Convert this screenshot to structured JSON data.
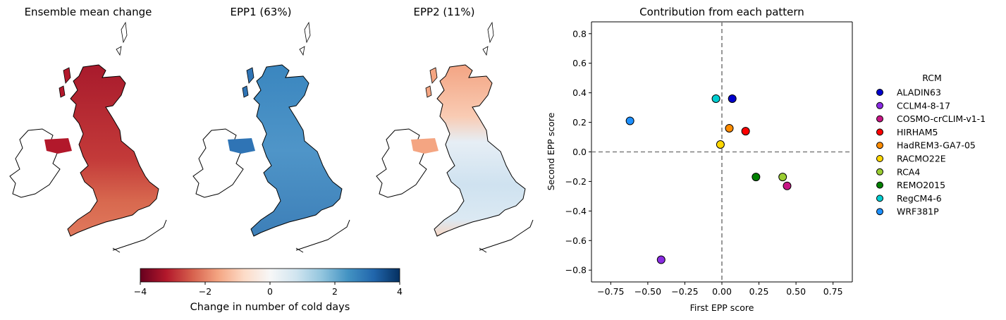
{
  "maps": [
    {
      "title": "Ensemble mean change"
    },
    {
      "title": "EPP1 (63%)"
    },
    {
      "title": "EPP2 (11%)"
    }
  ],
  "colorbar": {
    "label": "Change in number of cold days",
    "ticks": [
      "−4",
      "−2",
      "0",
      "2",
      "4"
    ],
    "min": -4,
    "max": 4,
    "colormap": "RdBu",
    "stops": [
      "#67001f",
      "#b2182b",
      "#d6604d",
      "#f4a582",
      "#fddbc7",
      "#f7f7f7",
      "#d1e5f0",
      "#92c5de",
      "#4393c3",
      "#2166ac",
      "#053061"
    ]
  },
  "chart_data": {
    "type": "scatter",
    "title": "Contribution from each pattern",
    "xlabel": "First EPP score",
    "ylabel": "Second EPP score",
    "xlim": [
      -0.88,
      0.88
    ],
    "ylim": [
      -0.88,
      0.88
    ],
    "xticks": [
      -0.75,
      -0.5,
      -0.25,
      0.0,
      0.25,
      0.5,
      0.75
    ],
    "xtick_labels": [
      "−0.75",
      "−0.50",
      "−0.25",
      "0.00",
      "0.25",
      "0.50",
      "0.75"
    ],
    "yticks": [
      0.8,
      0.6,
      0.4,
      0.2,
      0.0,
      -0.2,
      -0.4,
      -0.6,
      -0.8
    ],
    "ytick_labels": [
      "0.8",
      "0.6",
      "0.4",
      "0.2",
      "0.0",
      "−0.2",
      "−0.4",
      "−0.6",
      "−0.8"
    ],
    "reference_lines": {
      "x": 0,
      "y": 0,
      "style": "dashed"
    },
    "legend_title": "RCM",
    "legend_position": "right, outside",
    "series": [
      {
        "name": "ALADIN63",
        "x": 0.07,
        "y": 0.36,
        "color": "#0000cd"
      },
      {
        "name": "CCLM4-8-17",
        "x": -0.41,
        "y": -0.73,
        "color": "#8a2be2"
      },
      {
        "name": "COSMO-crCLIM-v1-1",
        "x": 0.44,
        "y": -0.23,
        "color": "#c71585"
      },
      {
        "name": "HIRHAM5",
        "x": 0.16,
        "y": 0.14,
        "color": "#ff0000"
      },
      {
        "name": "HadREM3-GA7-05",
        "x": 0.05,
        "y": 0.16,
        "color": "#ff8c00"
      },
      {
        "name": "RACMO22E",
        "x": -0.01,
        "y": 0.05,
        "color": "#ffd700"
      },
      {
        "name": "RCA4",
        "x": 0.41,
        "y": -0.17,
        "color": "#9acd32"
      },
      {
        "name": "REMO2015",
        "x": 0.23,
        "y": -0.17,
        "color": "#008000"
      },
      {
        "name": "RegCM4-6",
        "x": -0.04,
        "y": 0.36,
        "color": "#00ced1"
      },
      {
        "name": "WRF381P",
        "x": -0.62,
        "y": 0.21,
        "color": "#1e90ff"
      }
    ]
  }
}
